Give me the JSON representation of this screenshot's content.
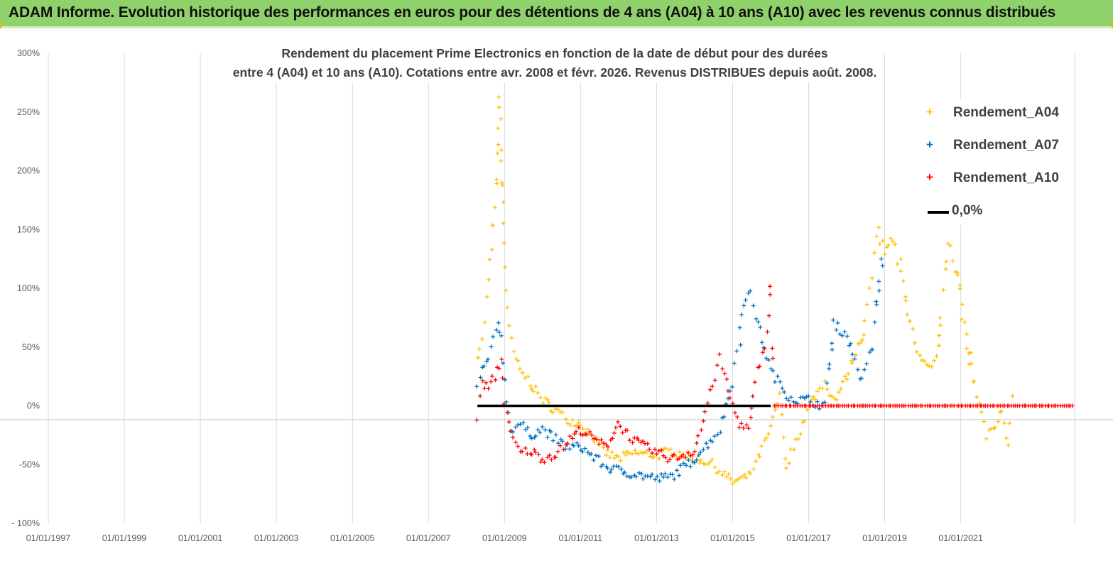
{
  "banner": {
    "title": "ADAM Informe. Evolution historique des performances en euros pour des détentions de 4 ans (A04) à 10 ans (A10) avec les revenus connus distribués"
  },
  "colors": {
    "banner_bg": "#8fd16a",
    "a04": "#ffc000",
    "a07": "#0070c0",
    "a10": "#ff0000",
    "zero": "#000000"
  },
  "chart_data": {
    "type": "scatter",
    "title_line1": "Rendement du placement Prime Electronics  en fonction de la date de début pour des durées",
    "title_line2": "entre 4 (A04) et 10 ans (A10). Cotations entre avr. 2008 et févr. 2026. Revenus DISTRIBUES depuis août. 2008.",
    "xlabel": "",
    "ylabel": "",
    "x_ticks": [
      "01/01/1997",
      "01/01/1999",
      "01/01/2001",
      "01/01/2003",
      "01/01/2005",
      "01/01/2007",
      "01/01/2009",
      "01/01/2011",
      "01/01/2013",
      "01/01/2015",
      "01/01/2017",
      "01/01/2019",
      "01/01/2021"
    ],
    "xlim": [
      "1997-01-01",
      "2023-12-31"
    ],
    "y_ticks": [
      "300%",
      "250%",
      "200%",
      "150%",
      "100%",
      "50%",
      "0%",
      "-50%",
      "- 100%"
    ],
    "ylim": [
      -100,
      300
    ],
    "grid": "vertical",
    "legend_position": "top-right",
    "series": [
      {
        "name": "Rendement_A04",
        "color": "#ffc000",
        "marker": "+",
        "points": [
          [
            "2008-04-15",
            45
          ],
          [
            "2008-06-01",
            55
          ],
          [
            "2008-07-15",
            90
          ],
          [
            "2008-08-15",
            120
          ],
          [
            "2008-09-15",
            150
          ],
          [
            "2008-10-15",
            180
          ],
          [
            "2008-11-01",
            240
          ],
          [
            "2008-11-15",
            265
          ],
          [
            "2008-12-01",
            220
          ],
          [
            "2008-12-15",
            170
          ],
          [
            "2009-01-01",
            140
          ],
          [
            "2009-01-15",
            100
          ],
          [
            "2009-02-15",
            65
          ],
          [
            "2009-04-01",
            45
          ],
          [
            "2009-06-01",
            30
          ],
          [
            "2009-09-01",
            20
          ],
          [
            "2010-01-01",
            5
          ],
          [
            "2010-06-01",
            -5
          ],
          [
            "2010-09-01",
            -12
          ],
          [
            "2011-01-01",
            -15
          ],
          [
            "2011-06-01",
            -30
          ],
          [
            "2011-09-01",
            -40
          ],
          [
            "2012-01-01",
            -45
          ],
          [
            "2012-06-01",
            -40
          ],
          [
            "2013-01-01",
            -42
          ],
          [
            "2013-06-01",
            -38
          ],
          [
            "2014-01-01",
            -45
          ],
          [
            "2014-06-01",
            -48
          ],
          [
            "2014-09-01",
            -55
          ],
          [
            "2015-01-01",
            -65
          ],
          [
            "2015-06-01",
            -60
          ],
          [
            "2015-09-01",
            -45
          ],
          [
            "2016-01-01",
            -20
          ],
          [
            "2016-04-01",
            10
          ],
          [
            "2016-06-01",
            -50
          ],
          [
            "2016-09-01",
            -30
          ],
          [
            "2017-01-01",
            0
          ],
          [
            "2017-06-01",
            20
          ],
          [
            "2017-09-01",
            5
          ],
          [
            "2018-01-01",
            25
          ],
          [
            "2018-03-01",
            40
          ],
          [
            "2018-06-01",
            60
          ],
          [
            "2018-09-01",
            110
          ],
          [
            "2018-11-01",
            150
          ],
          [
            "2019-01-01",
            130
          ],
          [
            "2019-03-01",
            150
          ],
          [
            "2019-06-01",
            120
          ],
          [
            "2019-09-01",
            70
          ],
          [
            "2019-12-01",
            40
          ],
          [
            "2020-03-01",
            30
          ],
          [
            "2020-06-01",
            50
          ],
          [
            "2020-09-01",
            140
          ],
          [
            "2020-12-01",
            110
          ],
          [
            "2021-03-01",
            60
          ],
          [
            "2021-06-01",
            10
          ],
          [
            "2021-09-01",
            -25
          ],
          [
            "2021-12-01",
            -15
          ],
          [
            "2022-02-01",
            -5
          ],
          [
            "2022-04-01",
            -35
          ],
          [
            "2022-06-01",
            30
          ]
        ]
      },
      {
        "name": "Rendement_A07",
        "color": "#0070c0",
        "marker": "+",
        "points": [
          [
            "2008-04-15",
            15
          ],
          [
            "2008-06-01",
            30
          ],
          [
            "2008-08-01",
            40
          ],
          [
            "2008-09-15",
            55
          ],
          [
            "2008-11-01",
            70
          ],
          [
            "2008-12-01",
            60
          ],
          [
            "2009-01-01",
            20
          ],
          [
            "2009-03-01",
            -20
          ],
          [
            "2009-06-01",
            -15
          ],
          [
            "2009-09-01",
            -25
          ],
          [
            "2010-01-01",
            -20
          ],
          [
            "2010-06-01",
            -30
          ],
          [
            "2010-09-01",
            -35
          ],
          [
            "2011-01-01",
            -35
          ],
          [
            "2011-06-01",
            -45
          ],
          [
            "2011-09-01",
            -52
          ],
          [
            "2012-01-01",
            -55
          ],
          [
            "2012-06-01",
            -58
          ],
          [
            "2013-01-01",
            -62
          ],
          [
            "2013-06-01",
            -60
          ],
          [
            "2014-01-01",
            -45
          ],
          [
            "2014-06-01",
            -30
          ],
          [
            "2014-09-01",
            -20
          ],
          [
            "2015-01-01",
            20
          ],
          [
            "2015-04-01",
            80
          ],
          [
            "2015-06-01",
            100
          ],
          [
            "2015-09-01",
            70
          ],
          [
            "2016-01-01",
            30
          ],
          [
            "2016-06-01",
            10
          ],
          [
            "2016-09-01",
            5
          ],
          [
            "2017-01-01",
            5
          ],
          [
            "2017-06-01",
            0
          ],
          [
            "2017-09-01",
            70
          ],
          [
            "2018-01-01",
            60
          ],
          [
            "2018-03-01",
            45
          ],
          [
            "2018-06-01",
            20
          ],
          [
            "2018-09-01",
            50
          ],
          [
            "2018-12-01",
            120
          ],
          [
            "2019-01-01",
            130
          ]
        ]
      },
      {
        "name": "Rendement_A10",
        "color": "#ff0000",
        "marker": "+",
        "points": [
          [
            "2008-04-15",
            -10
          ],
          [
            "2008-06-01",
            20
          ],
          [
            "2008-08-01",
            15
          ],
          [
            "2008-10-01",
            25
          ],
          [
            "2008-12-01",
            40
          ],
          [
            "2009-01-01",
            5
          ],
          [
            "2009-03-01",
            -25
          ],
          [
            "2009-06-01",
            -40
          ],
          [
            "2009-09-01",
            -38
          ],
          [
            "2010-01-01",
            -45
          ],
          [
            "2010-06-01",
            -40
          ],
          [
            "2010-09-01",
            -30
          ],
          [
            "2011-01-01",
            -20
          ],
          [
            "2011-06-01",
            -30
          ],
          [
            "2011-09-01",
            -35
          ],
          [
            "2012-01-01",
            -15
          ],
          [
            "2012-06-01",
            -30
          ],
          [
            "2013-01-01",
            -40
          ],
          [
            "2013-06-01",
            -45
          ],
          [
            "2014-01-01",
            -38
          ],
          [
            "2014-03-01",
            -20
          ],
          [
            "2014-06-01",
            10
          ],
          [
            "2014-09-01",
            40
          ],
          [
            "2015-01-01",
            0
          ],
          [
            "2015-03-01",
            -15
          ],
          [
            "2015-06-01",
            -20
          ],
          [
            "2015-09-01",
            30
          ],
          [
            "2015-12-01",
            60
          ],
          [
            "2016-01-01",
            100
          ],
          [
            "2016-02-01",
            0
          ],
          [
            "2017-01-01",
            0
          ],
          [
            "2018-01-01",
            0
          ],
          [
            "2019-01-01",
            0
          ],
          [
            "2020-01-01",
            0
          ],
          [
            "2021-01-01",
            0
          ],
          [
            "2022-01-01",
            0
          ],
          [
            "2023-01-01",
            0
          ],
          [
            "2023-12-31",
            0
          ]
        ]
      },
      {
        "name": "0,0%",
        "color": "#000000",
        "marker": "line",
        "points": [
          [
            "2008-04-15",
            0
          ],
          [
            "2016-01-01",
            0
          ]
        ]
      }
    ]
  }
}
